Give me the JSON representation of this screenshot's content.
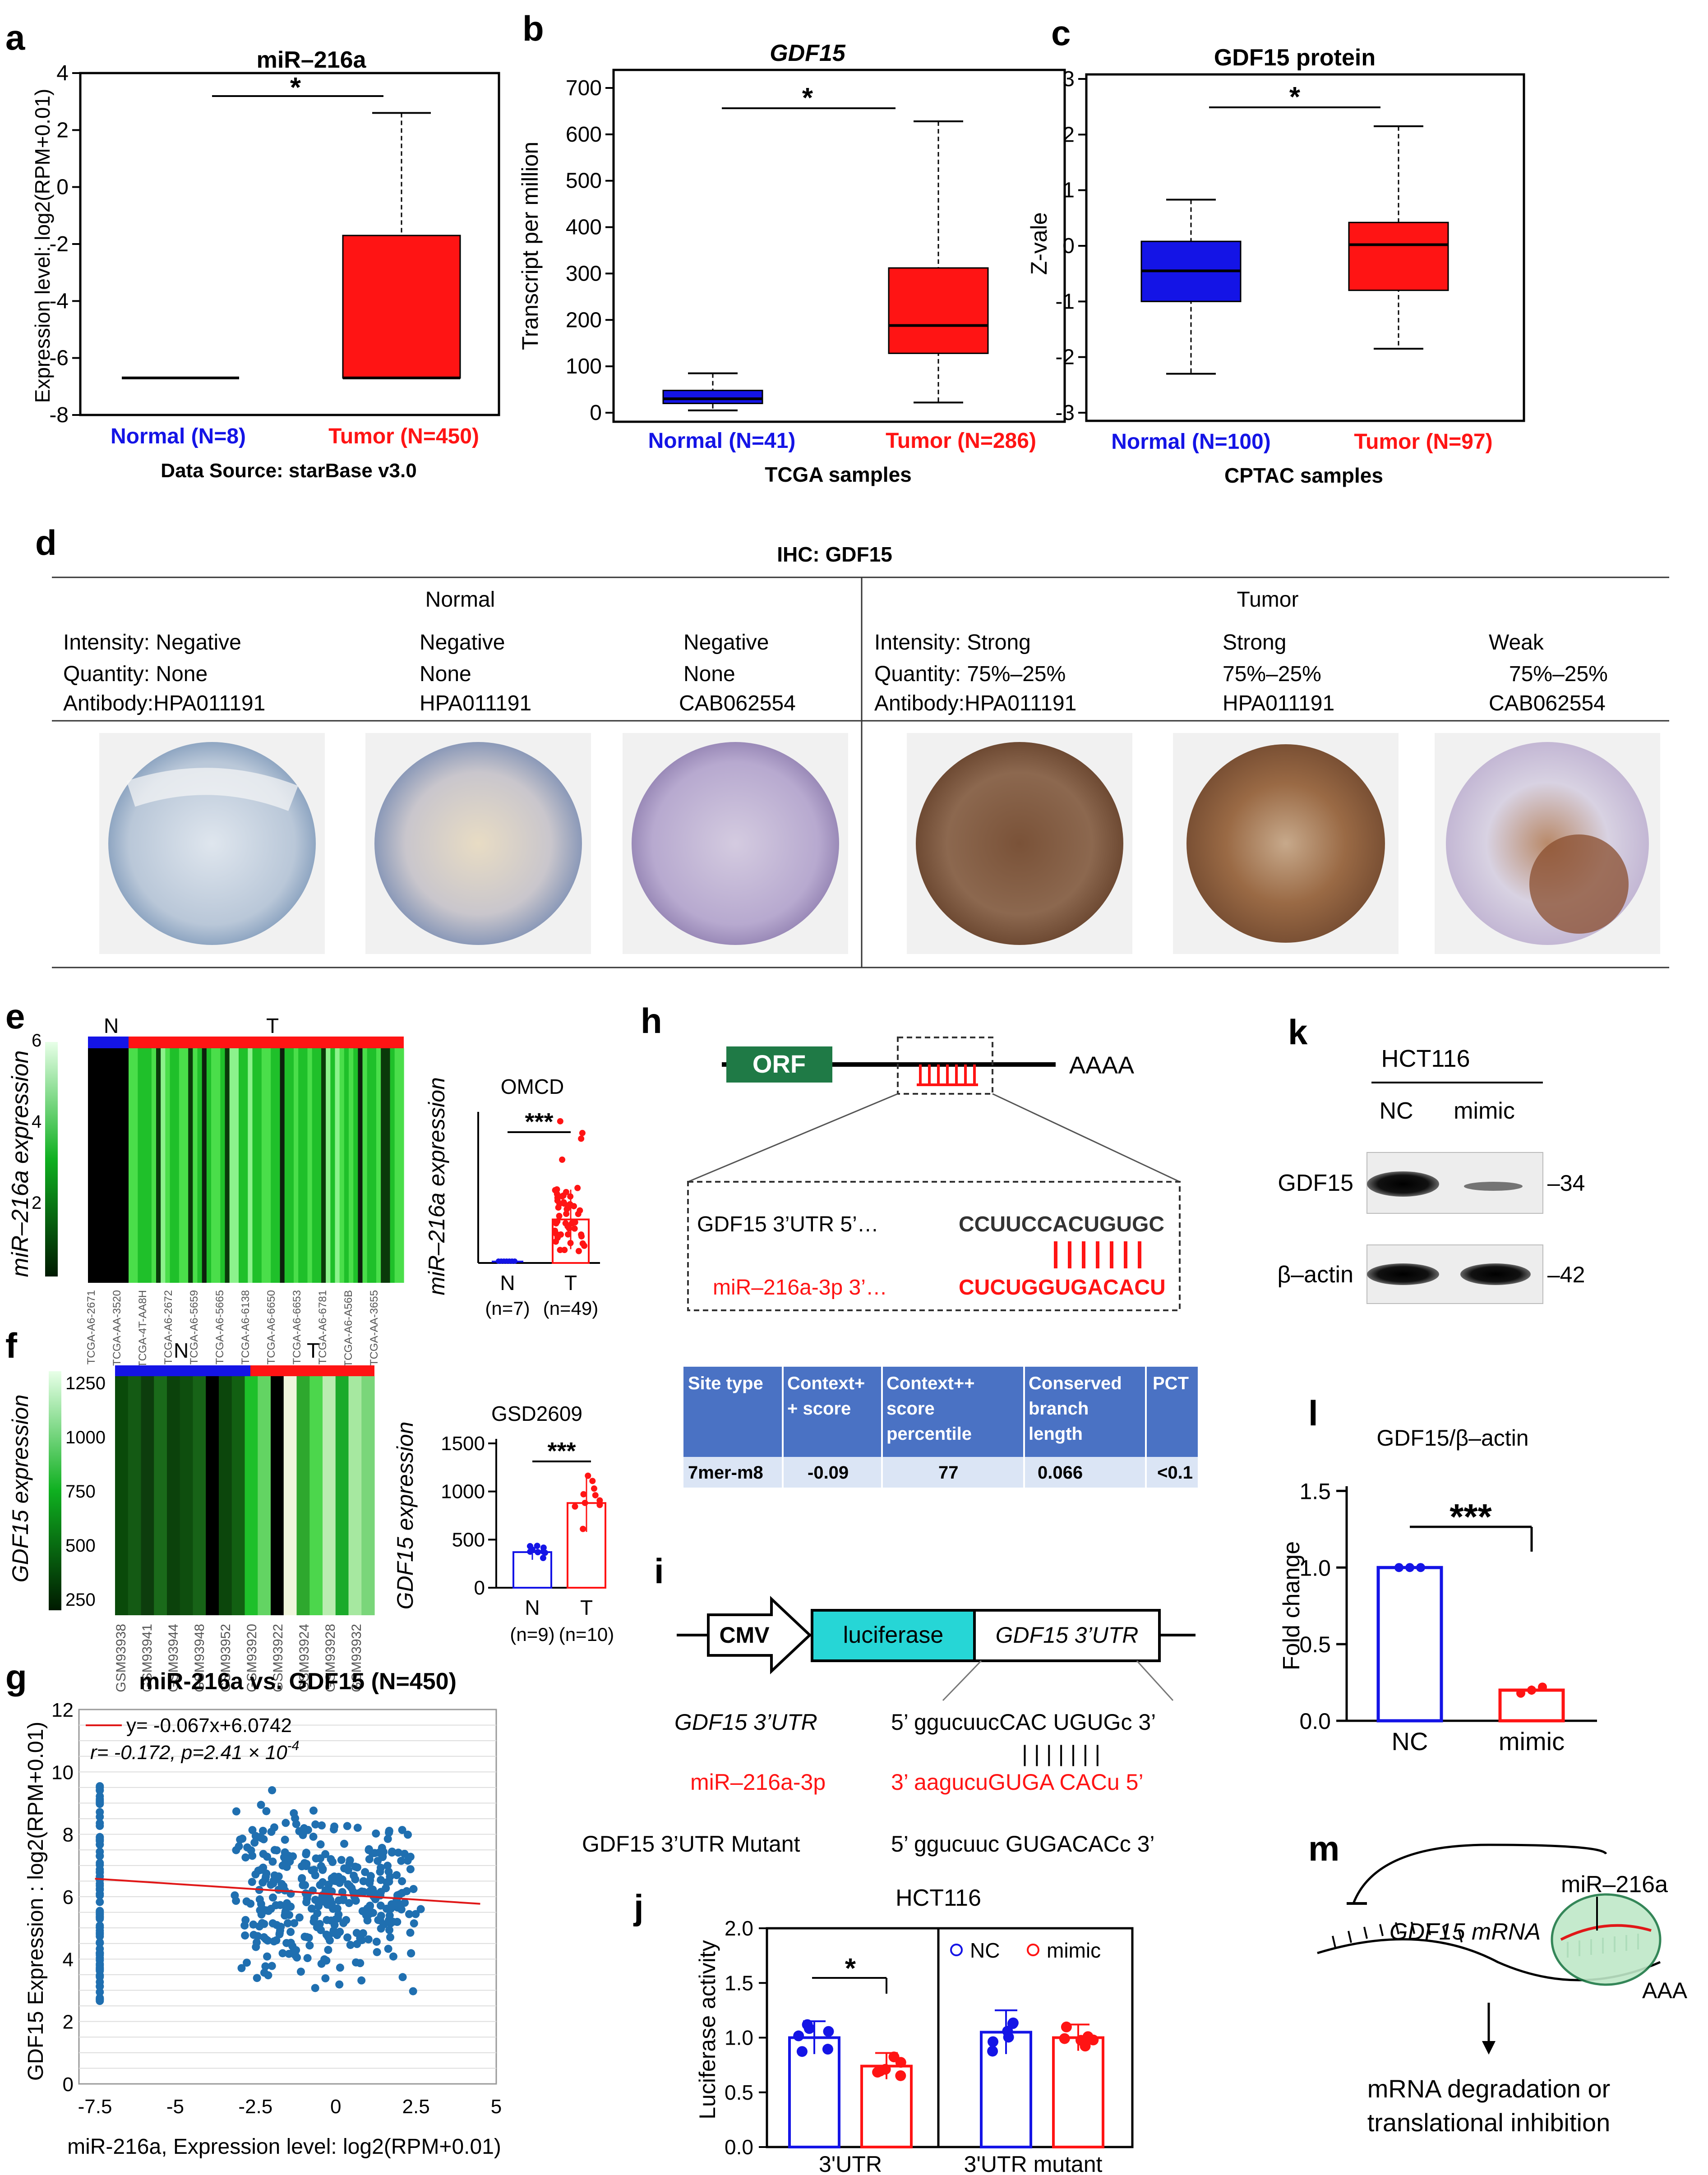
{
  "colors": {
    "normal": "#1414e6",
    "tumor": "#ff1414",
    "green": "#1f7a46",
    "cyan": "#26d6d6",
    "table_head": "#4a72c4",
    "table_row": "#dbe5f5"
  },
  "panels": {
    "a": {
      "letter": "a",
      "title": "miR–216a",
      "ylabel": "Expression level: log2(RPM+0.01)",
      "ticks": [
        "4",
        "2",
        "0",
        "-2",
        "-4",
        "-6",
        "-8"
      ],
      "normal_label": "Normal (N=8)",
      "tumor_label": "Tumor (N=450)",
      "source": "Data Source: starBase v3.0",
      "sig": "*"
    },
    "b": {
      "letter": "b",
      "title": "GDF15",
      "ylabel": "Transcript per million",
      "ticks": [
        "700",
        "600",
        "500",
        "400",
        "300",
        "200",
        "100",
        "0"
      ],
      "normal_label": "Normal  (N=41)",
      "tumor_label": "Tumor (N=286)",
      "source": "TCGA samples",
      "sig": "*"
    },
    "c": {
      "letter": "c",
      "title": "GDF15 protein",
      "ylabel": "Z-vale",
      "ticks": [
        "3",
        "2",
        "1",
        "0",
        "-1",
        "-2",
        "-3"
      ],
      "normal_label": "Normal (N=100)",
      "tumor_label": "Tumor (N=97)",
      "source": "CPTAC samples",
      "sig": "*"
    },
    "d": {
      "letter": "d",
      "title": "IHC: GDF15",
      "normal_head": "Normal",
      "tumor_head": "Tumor",
      "normal_cols": [
        {
          "intensity": "Intensity: Negative",
          "quantity": "Quantity: None",
          "antibody": "Antibody:HPA011191"
        },
        {
          "intensity": "Negative",
          "quantity": "None",
          "antibody": "HPA011191"
        },
        {
          "intensity": "Negative",
          "quantity": "None",
          "antibody": "CAB062554"
        }
      ],
      "tumor_cols": [
        {
          "intensity": "Intensity: Strong",
          "quantity": "Quantity: 75%–25%",
          "antibody": "Antibody:HPA011191"
        },
        {
          "intensity": "Strong",
          "quantity": "75%–25%",
          "antibody": "HPA011191"
        },
        {
          "intensity": "Weak",
          "quantity": "75%–25%",
          "antibody": "CAB062554"
        }
      ]
    },
    "e": {
      "letter": "e",
      "n": "N",
      "t": "T",
      "ylabel": "miR–216a expression",
      "scale": [
        "6",
        "4",
        "2"
      ],
      "samples": [
        "TCGA-A6-2671",
        "TCGA-AA-3520",
        "TCGA-4T-AA8H",
        "TCGA-A6-2672",
        "TCGA-A6-5659",
        "TCGA-A6-5665",
        "TCGA-A6-6138",
        "TCGA-A6-6650",
        "TCGA-A6-6653",
        "TCGA-A6-6781",
        "TCGA-A6-A56B",
        "TCGA-AA-3655"
      ],
      "dot_title": "OMCD",
      "dot_ylabel": "miR–216a expression",
      "groups": [
        "N",
        "T"
      ],
      "group_ns": [
        "(n=7)",
        "(n=49)"
      ],
      "sig": "***"
    },
    "f": {
      "letter": "f",
      "n": "N",
      "t": "T",
      "ylabel": "GDF15 expression",
      "scale": [
        "1250",
        "1000",
        "750",
        "500",
        "250"
      ],
      "samples": [
        "GSM93938",
        "GSM93941",
        "GSM93944",
        "GSM93948",
        "GSM93952",
        "GSM93920",
        "GSM93922",
        "GSM93924",
        "GSM93928",
        "GSM93932"
      ],
      "dot_title": "GSD2609",
      "dot_ylabel": "GDF15 expression",
      "dot_ticks": [
        "1500",
        "1000",
        "500",
        "0"
      ],
      "groups": [
        "N",
        "T"
      ],
      "group_ns": [
        "(n=9)",
        "(n=10)"
      ],
      "sig": "***"
    },
    "g": {
      "letter": "g",
      "title": "miR-216a vs. GDF15 (N=450)",
      "eq": "y= -0.067x+6.0742",
      "stats": "r= -0.172, p=2.41 × 10",
      "stats_exp": "-4",
      "ylabel": "GDF15 Expression : log2(RPM+0.01)",
      "xlabel": "miR-216a, Expression level: log2(RPM+0.01)",
      "yticks": [
        "12",
        "10",
        "8",
        "6",
        "4",
        "2",
        "0"
      ],
      "xticks": [
        "-7.5",
        "-5",
        "-2.5",
        "0",
        "2.5",
        "5"
      ]
    },
    "h": {
      "letter": "h",
      "orf": "ORF",
      "polya": "AAAA",
      "utr_label": "GDF15 3’UTR   5’…",
      "utr_seq": "CCUUCCACUGUGC",
      "mir_label": "miR–216a-3p   3’…",
      "mir_seq": "CUCUGGUGACACU",
      "table_head": [
        "Site type",
        "Context+\n+ score",
        "Context++\nscore\npercentile",
        "Conserved\nbranch\nlength",
        "PCT"
      ],
      "table_row": [
        "7mer-m8",
        "-0.09",
        "77",
        "0.066",
        "<0.1"
      ]
    },
    "i": {
      "letter": "i",
      "cmv": "CMV",
      "luc": "luciferase",
      "utr": "GDF15 3’UTR",
      "row1_label": "GDF15  3’UTR",
      "row1_seq": "5’ ggucuucCAC UGUGc  3’",
      "bars": "| | | | | | |",
      "row2_label": "miR–216a-3p",
      "row2_seq": "3’ aagucuGUGA CACu  5’",
      "row3_label": "GDF15  3’UTR Mutant",
      "row3_seq": "5’ ggucuuc GUGACACc  3’"
    },
    "j": {
      "letter": "j",
      "title": "HCT116",
      "ylabel": "Luciferase activity",
      "ticks": [
        "2.0",
        "1.5",
        "1.0",
        "0.5",
        "0.0"
      ],
      "groups": [
        "3'UTR",
        "3'UTR mutant"
      ],
      "legend": [
        "NC",
        "mimic"
      ],
      "sig": "*"
    },
    "k": {
      "letter": "k",
      "cell": "HCT116",
      "lanes": [
        "NC",
        "mimic"
      ],
      "rows": [
        "GDF15",
        "β–actin"
      ],
      "sizes": [
        "–34",
        "–42"
      ]
    },
    "l": {
      "letter": "l",
      "title": "GDF15/β–actin",
      "ylabel": "Fold change",
      "ticks": [
        "1.5",
        "1.0",
        "0.5",
        "0.0"
      ],
      "groups": [
        "NC",
        "mimic"
      ],
      "sig": "***"
    },
    "m": {
      "letter": "m",
      "mir": "miR–216a",
      "mrna": "GDF15 mRNA",
      "polya": "AAA",
      "outcome1": "mRNA degradation or",
      "outcome2": "translational inhibition"
    }
  },
  "chart_data": [
    {
      "panel": "a",
      "type": "box",
      "title": "miR–216a",
      "ylabel": "Expression level: log2(RPM+0.01)",
      "ylim": [
        -8,
        4
      ],
      "categories": [
        "Normal (N=8)",
        "Tumor (N=450)"
      ],
      "boxes": [
        {
          "min": -6.7,
          "q1": -6.7,
          "median": -6.7,
          "q3": -6.7,
          "max": -6.7
        },
        {
          "min": -6.7,
          "q1": -6.7,
          "median": -6.7,
          "q3": -1.7,
          "max": 2.6
        }
      ]
    },
    {
      "panel": "b",
      "type": "box",
      "title": "GDF15",
      "ylabel": "Transcript per million",
      "ylim": [
        0,
        700
      ],
      "categories": [
        "Normal  (N=41)",
        "Tumor (N=286)"
      ],
      "boxes": [
        {
          "min": 5,
          "q1": 20,
          "median": 30,
          "q3": 48,
          "max": 85
        },
        {
          "min": 22,
          "q1": 128,
          "median": 188,
          "q3": 312,
          "max": 628
        }
      ]
    },
    {
      "panel": "c",
      "type": "box",
      "title": "GDF15 protein",
      "ylabel": "Z-vale",
      "ylim": [
        -3,
        3
      ],
      "categories": [
        "Normal (N=100)",
        "Tumor (N=97)"
      ],
      "boxes": [
        {
          "min": -2.3,
          "q1": -1.0,
          "median": -0.45,
          "q3": 0.08,
          "max": 0.83
        },
        {
          "min": -1.85,
          "q1": -0.8,
          "median": 0.02,
          "q3": 0.42,
          "max": 2.15
        }
      ]
    },
    {
      "panel": "e",
      "type": "scatter",
      "title": "OMCD",
      "ylabel": "miR–216a expression",
      "ylim": [
        0,
        6.5
      ],
      "series": [
        {
          "name": "N",
          "mean": 0.1,
          "n": 7
        },
        {
          "name": "T",
          "mean": 1.9,
          "sd": 1.3,
          "n": 49
        }
      ]
    },
    {
      "panel": "f",
      "type": "bar",
      "title": "GSD2609",
      "ylabel": "GDF15 expression",
      "ylim": [
        0,
        1500
      ],
      "series": [
        {
          "name": "N",
          "mean": 370,
          "sd": 80,
          "n": 9
        },
        {
          "name": "T",
          "mean": 880,
          "sd": 300,
          "n": 10
        }
      ]
    },
    {
      "panel": "g",
      "type": "scatter",
      "title": "miR-216a vs. GDF15 (N=450)",
      "xlim": [
        -8,
        5
      ],
      "ylim": [
        0,
        12
      ],
      "fit": {
        "slope": -0.067,
        "intercept": 6.0742
      }
    },
    {
      "panel": "j",
      "type": "bar",
      "title": "HCT116",
      "ylabel": "Luciferase activity",
      "ylim": [
        0,
        2.0
      ],
      "categories": [
        "3'UTR",
        "3'UTR mutant"
      ],
      "series": [
        {
          "name": "NC",
          "values": [
            1.0,
            1.05
          ],
          "sd": [
            0.15,
            0.2
          ]
        },
        {
          "name": "mimic",
          "values": [
            0.74,
            1.0
          ],
          "sd": [
            0.12,
            0.12
          ]
        }
      ]
    },
    {
      "panel": "l",
      "type": "bar",
      "title": "GDF15/β–actin",
      "ylabel": "Fold change",
      "ylim": [
        0,
        1.5
      ],
      "categories": [
        "NC",
        "mimic"
      ],
      "values": [
        1.0,
        0.2
      ],
      "sd": [
        0.0,
        0.03
      ]
    }
  ]
}
